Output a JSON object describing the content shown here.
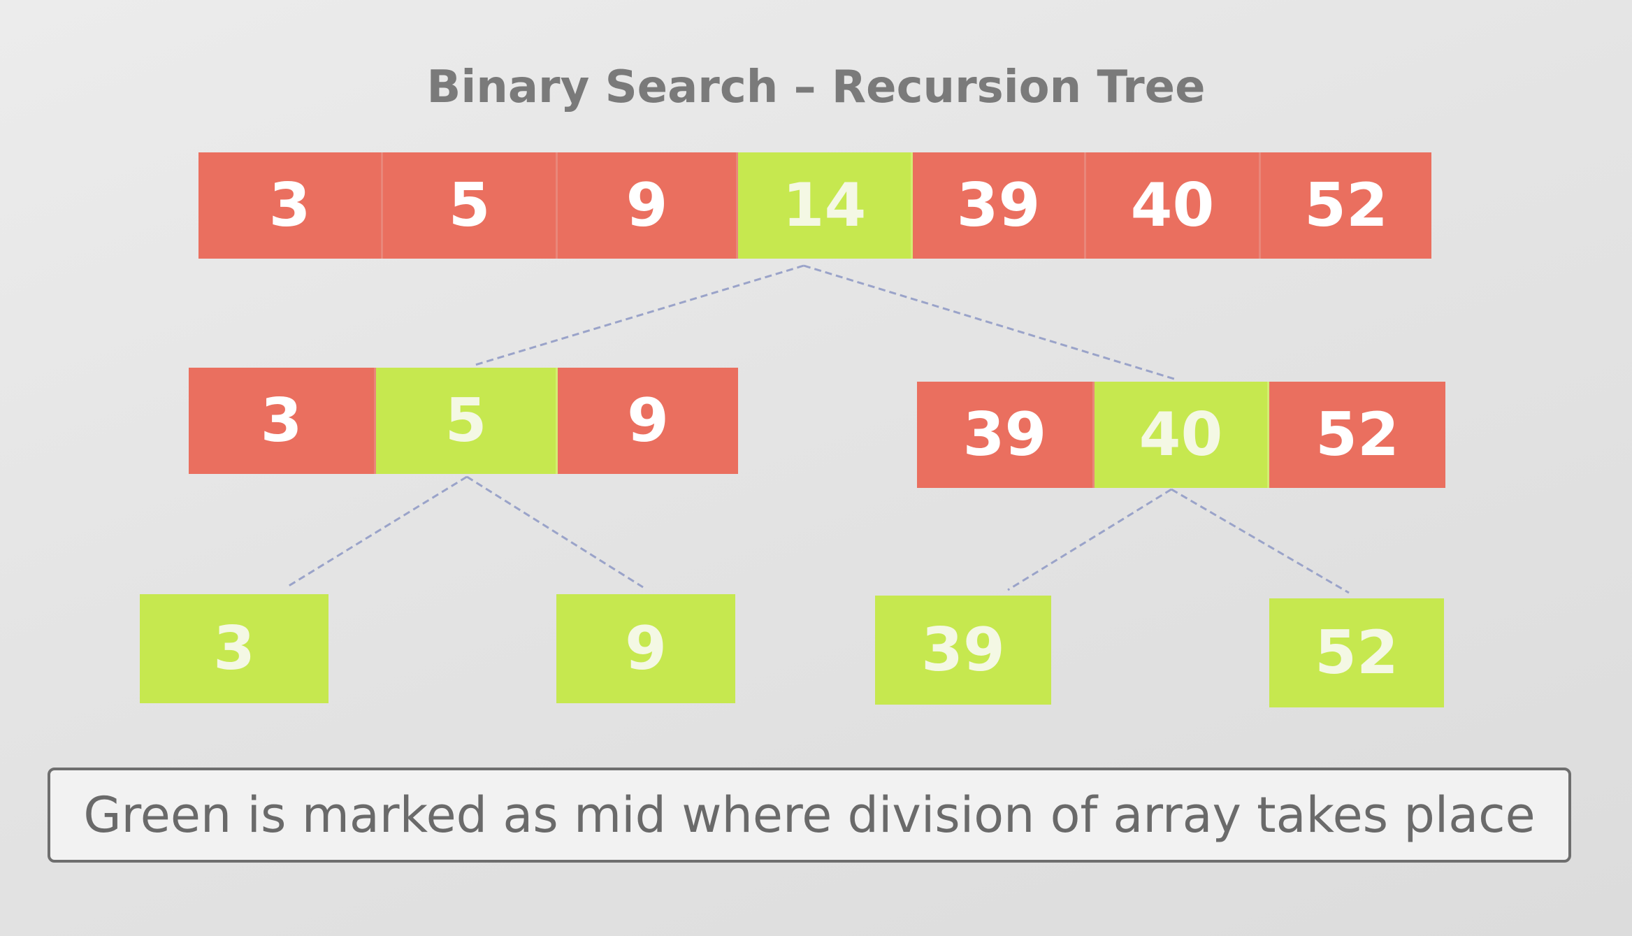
{
  "title": "Binary Search – Recursion Tree",
  "note": "Green is marked as mid where division of array takes place",
  "colors": {
    "not_mid": "#ea6f5f",
    "mid": "#c6e84f"
  },
  "levels": [
    [
      {
        "values": [
          "3",
          "5",
          "9",
          "14",
          "39",
          "40",
          "52"
        ],
        "mid_index": 3
      }
    ],
    [
      {
        "values": [
          "3",
          "5",
          "9"
        ],
        "mid_index": 1
      },
      {
        "values": [
          "39",
          "40",
          "52"
        ],
        "mid_index": 1
      }
    ],
    [
      {
        "values": [
          "3"
        ],
        "mid_index": 0
      },
      {
        "values": [
          "9"
        ],
        "mid_index": 0
      },
      {
        "values": [
          "39"
        ],
        "mid_index": 0
      },
      {
        "values": [
          "52"
        ],
        "mid_index": 0
      }
    ]
  ]
}
